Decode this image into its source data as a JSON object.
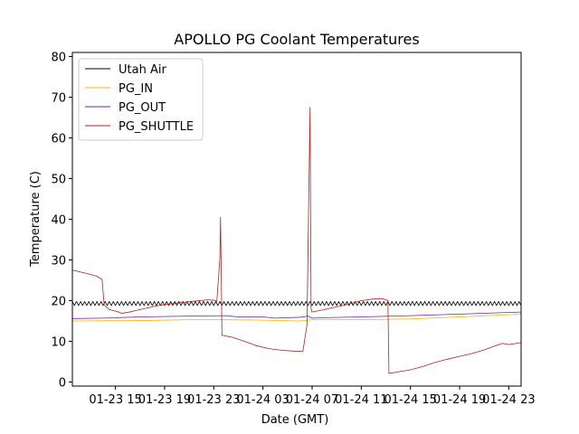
{
  "chart_data": {
    "type": "line",
    "title": "APOLLO PG Coolant Temperatures",
    "xlabel": "Date (GMT)",
    "ylabel": "Temperature (C)",
    "xlim": [
      "01-23 11:30",
      "01-25 00:00"
    ],
    "ylim": [
      -1,
      81
    ],
    "x_ticks": [
      {
        "at": "01-23 15:00",
        "label": "01-23 15"
      },
      {
        "at": "01-23 19:00",
        "label": "01-23 19"
      },
      {
        "at": "01-23 23:00",
        "label": "01-23 23"
      },
      {
        "at": "01-24 03:00",
        "label": "01-24 03"
      },
      {
        "at": "01-24 07:00",
        "label": "01-24 07"
      },
      {
        "at": "01-24 11:00",
        "label": "01-24 11"
      },
      {
        "at": "01-24 15:00",
        "label": "01-24 15"
      },
      {
        "at": "01-24 19:00",
        "label": "01-24 19"
      },
      {
        "at": "01-24 23:00",
        "label": "01-24 23"
      }
    ],
    "y_ticks": [
      0,
      10,
      20,
      30,
      40,
      50,
      60,
      70,
      80
    ],
    "grid": false,
    "legend": "top-left",
    "series": [
      {
        "name": "Utah Air",
        "color": "#000000",
        "oscillation": {
          "mean": 19.3,
          "amplitude": 0.5,
          "period_minutes": 20
        },
        "points": [
          [
            "01-23 11:30",
            19.3
          ],
          [
            "01-25 00:00",
            19.3
          ]
        ]
      },
      {
        "name": "PG_IN",
        "color": "#f5b400",
        "points": [
          [
            "01-23 11:30",
            15.0
          ],
          [
            "01-23 17:00",
            15.1
          ],
          [
            "01-23 21:00",
            15.3
          ],
          [
            "01-24 00:00",
            15.3
          ],
          [
            "01-24 03:00",
            15.2
          ],
          [
            "01-24 06:00",
            15.0
          ],
          [
            "01-24 07:00",
            15.3
          ],
          [
            "01-24 11:00",
            15.3
          ],
          [
            "01-24 15:00",
            15.5
          ],
          [
            "01-24 19:00",
            16.0
          ],
          [
            "01-25 00:00",
            16.7
          ]
        ]
      },
      {
        "name": "PG_OUT",
        "color": "#7a1fa2",
        "points": [
          [
            "01-23 11:30",
            15.6
          ],
          [
            "01-23 14:00",
            15.7
          ],
          [
            "01-23 17:00",
            16.0
          ],
          [
            "01-23 21:00",
            16.2
          ],
          [
            "01-24 00:00",
            16.3
          ],
          [
            "01-24 01:00",
            16.0
          ],
          [
            "01-24 03:00",
            16.0
          ],
          [
            "01-24 04:00",
            15.7
          ],
          [
            "01-24 06:00",
            15.9
          ],
          [
            "01-24 06:40",
            16.2
          ],
          [
            "01-24 07:00",
            15.7
          ],
          [
            "01-24 08:00",
            15.8
          ],
          [
            "01-24 11:00",
            16.0
          ],
          [
            "01-24 15:00",
            16.3
          ],
          [
            "01-24 19:00",
            16.7
          ],
          [
            "01-25 00:00",
            17.2
          ]
        ]
      },
      {
        "name": "PG_SHUTTLE",
        "color": "#b22222",
        "points": [
          [
            "01-23 11:30",
            27.5
          ],
          [
            "01-23 12:30",
            26.8
          ],
          [
            "01-23 13:30",
            26.0
          ],
          [
            "01-23 13:55",
            25.2
          ],
          [
            "01-23 14:05",
            19.0
          ],
          [
            "01-23 14:30",
            17.8
          ],
          [
            "01-23 15:10",
            17.3
          ],
          [
            "01-23 15:30",
            16.9
          ],
          [
            "01-23 16:00",
            17.1
          ],
          [
            "01-23 17:00",
            17.8
          ],
          [
            "01-23 18:30",
            18.8
          ],
          [
            "01-23 20:00",
            19.4
          ],
          [
            "01-23 21:30",
            19.9
          ],
          [
            "01-23 22:30",
            20.2
          ],
          [
            "01-23 23:00",
            20.1
          ],
          [
            "01-23 23:15",
            19.8
          ],
          [
            "01-23 23:30",
            30.5
          ],
          [
            "01-23 23:33",
            40.5
          ],
          [
            "01-23 23:36",
            29.5
          ],
          [
            "01-23 23:40",
            11.5
          ],
          [
            "01-24 00:30",
            11.0
          ],
          [
            "01-24 01:30",
            10.0
          ],
          [
            "01-24 02:30",
            8.9
          ],
          [
            "01-24 03:30",
            8.2
          ],
          [
            "01-24 04:30",
            7.8
          ],
          [
            "01-24 05:30",
            7.6
          ],
          [
            "01-24 06:15",
            7.5
          ],
          [
            "01-24 06:35",
            14.0
          ],
          [
            "01-24 06:50",
            67.5
          ],
          [
            "01-24 06:55",
            18.0
          ],
          [
            "01-24 07:00",
            17.2
          ],
          [
            "01-24 08:00",
            17.8
          ],
          [
            "01-24 09:30",
            18.8
          ],
          [
            "01-24 11:00",
            20.0
          ],
          [
            "01-24 12:00",
            20.4
          ],
          [
            "01-24 12:45",
            20.5
          ],
          [
            "01-24 13:10",
            20.0
          ],
          [
            "01-24 13:15",
            2.1
          ],
          [
            "01-24 14:00",
            2.5
          ],
          [
            "01-24 15:00",
            3.0
          ],
          [
            "01-24 16:00",
            3.8
          ],
          [
            "01-24 17:00",
            4.8
          ],
          [
            "01-24 18:00",
            5.6
          ],
          [
            "01-24 19:00",
            6.3
          ],
          [
            "01-24 20:00",
            7.0
          ],
          [
            "01-24 21:00",
            7.9
          ],
          [
            "01-24 22:00",
            9.0
          ],
          [
            "01-24 22:30",
            9.5
          ],
          [
            "01-24 23:00",
            9.2
          ],
          [
            "01-25 00:00",
            9.7
          ]
        ]
      }
    ]
  }
}
